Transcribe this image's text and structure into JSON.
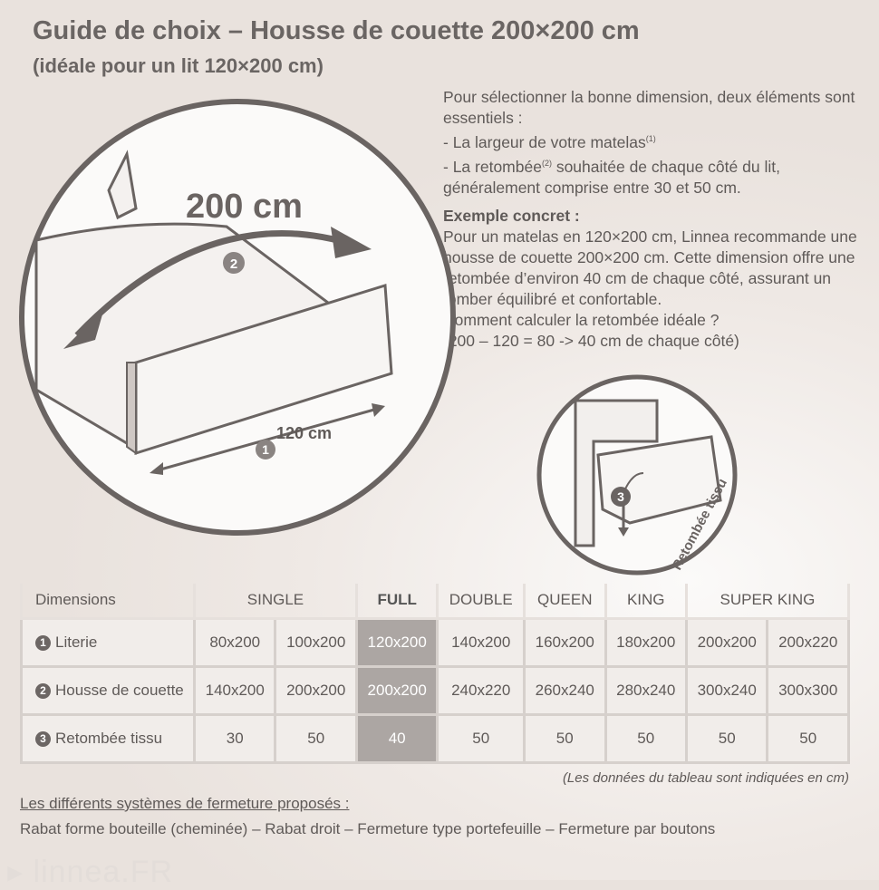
{
  "title": "Guide de choix – Housse de couette 200×200 cm",
  "subtitle": "(idéale pour un lit 120×200 cm)",
  "intro": {
    "line1": "Pour sélectionner la bonne dimension, deux éléments sont essentiels :",
    "item1": "- La largeur de votre matelas",
    "item1_sup": "(1)",
    "item2a": "- La retombée",
    "item2_sup": "(2)",
    "item2b": " souhaitée de chaque côté du lit, généralement comprise entre 30 et 50 cm.",
    "example_heading": "Exemple concret :",
    "example_text": "Pour un matelas en 120×200 cm, Linnea recommande une housse de couette 200×200 cm. Cette dimension offre une retombée d’environ 40 cm de chaque côté, assurant un tomber équilibré et confortable.",
    "question": "Comment calculer la retombée idéale ?",
    "calc": "(200 – 120 = 80  -> 40 cm de chaque côté)"
  },
  "illustration": {
    "length_label": "200 cm",
    "width_label": "120 cm",
    "marker1": "1",
    "marker2": "2",
    "marker3": "3",
    "drop_label": "Retombée tissu"
  },
  "table": {
    "header": [
      "Dimensions",
      "SINGLE",
      "FULL",
      "DOUBLE",
      "QUEEN",
      "KING",
      "SUPER KING"
    ],
    "rows": [
      {
        "num": "1",
        "label": "Literie",
        "values": [
          "80x200",
          "100x200",
          "120x200",
          "140x200",
          "160x200",
          "180x200",
          "200x200",
          "200x220"
        ]
      },
      {
        "num": "2",
        "label": "Housse de couette",
        "values": [
          "140x200",
          "200x200",
          "200x200",
          "240x220",
          "260x240",
          "280x240",
          "300x240",
          "300x300"
        ]
      },
      {
        "num": "3",
        "label": "Retombée tissu",
        "values": [
          "30",
          "50",
          "40",
          "50",
          "50",
          "50",
          "50",
          "50"
        ]
      }
    ],
    "highlight_column": "FULL",
    "note": "(Les données du tableau sont indiquées en cm)"
  },
  "closures": {
    "heading": "Les différents systèmes de fermeture proposés :",
    "list": "Rabat forme bouteille (cheminée) – Rabat droit – Fermeture type portefeuille – Fermeture par boutons"
  },
  "watermark": "linnea.FR",
  "colors": {
    "highlight": "#aca6a3",
    "text": "#5f5a58"
  }
}
